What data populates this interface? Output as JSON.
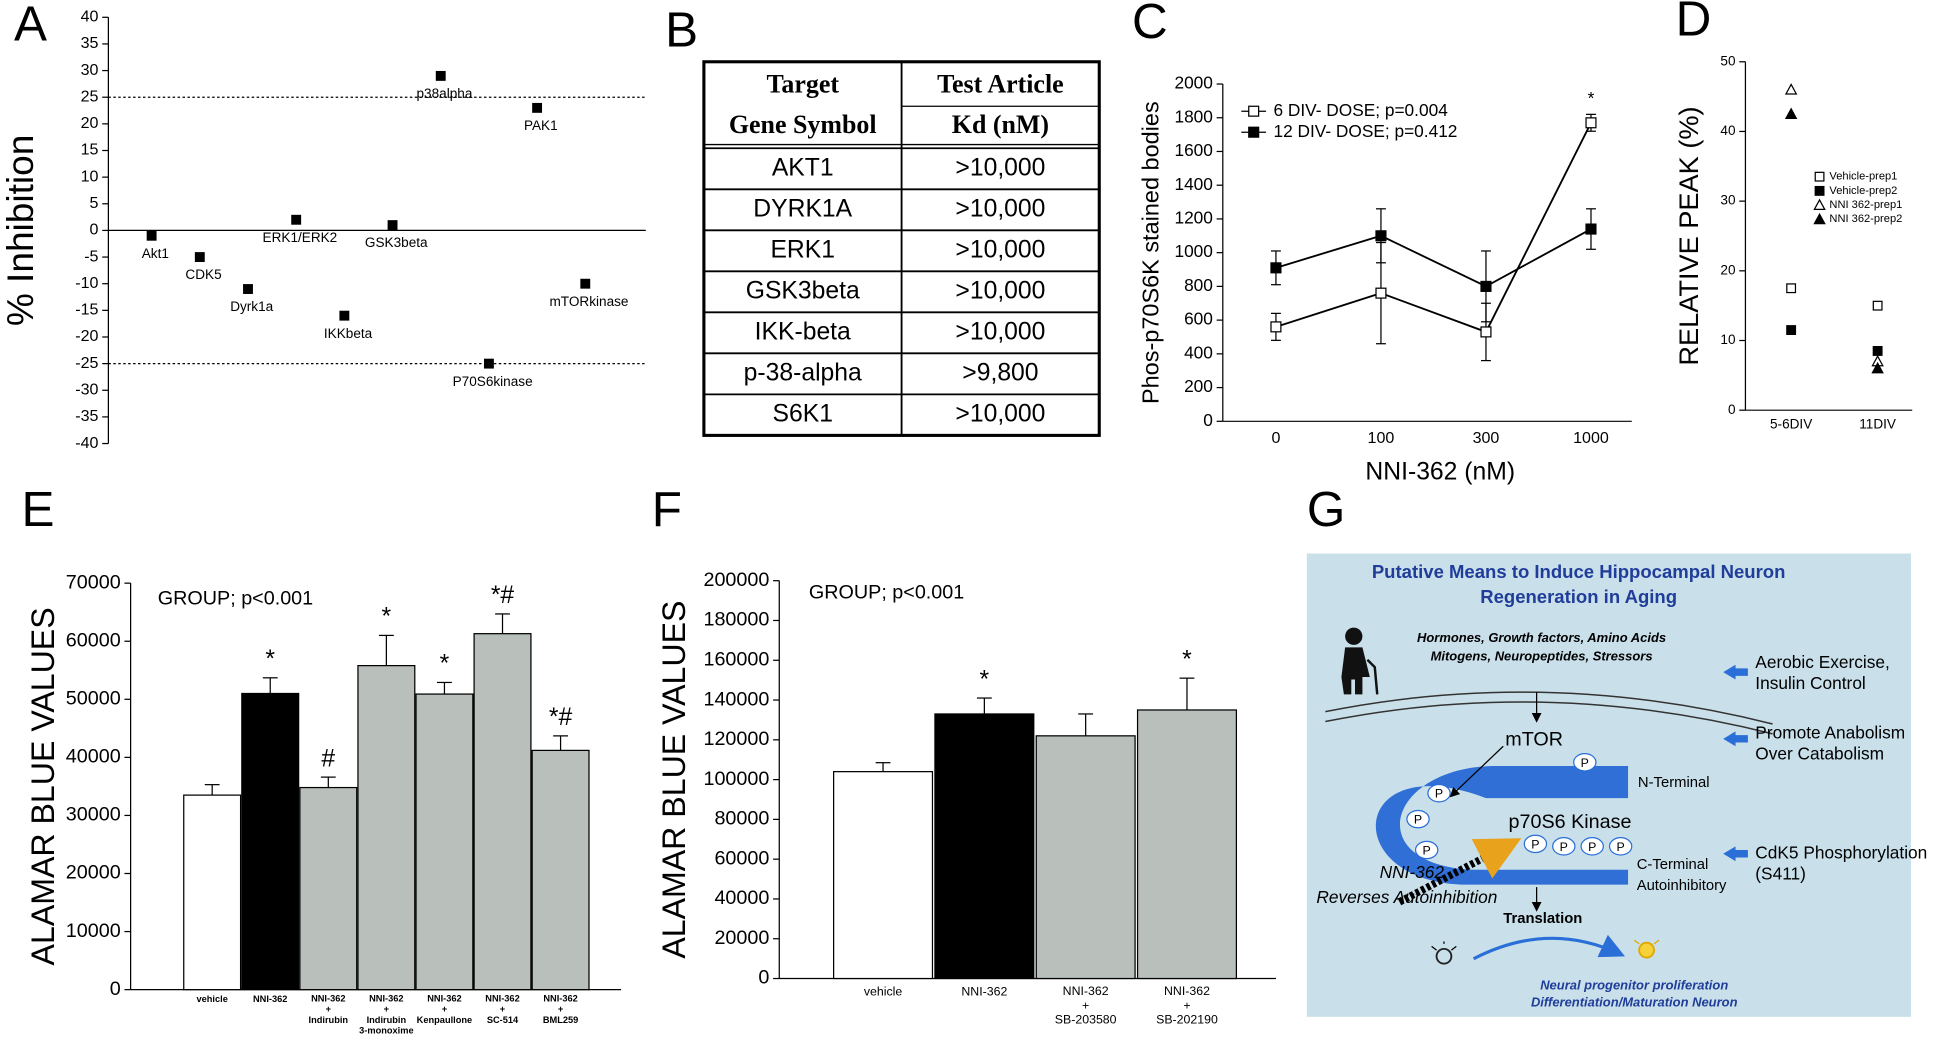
{
  "chart_data": [
    {
      "panel": "A",
      "type": "scatter",
      "ylabel": "% Inhibition",
      "categories": [
        "Akt1",
        "CDK5",
        "Dyrk1a",
        "ERK1/ERK2",
        "IKKbeta",
        "GSK3beta",
        "p38alpha",
        "P70S6kinase",
        "PAK1",
        "mTORkinase"
      ],
      "values": [
        -1,
        -5,
        -11,
        2,
        -16,
        1,
        29,
        -25,
        23,
        -10
      ],
      "color": "#000000",
      "ylim": [
        -40,
        40
      ],
      "yticks": [
        -40,
        -35,
        -30,
        -25,
        -20,
        -15,
        -10,
        -5,
        0,
        5,
        10,
        15,
        20,
        25,
        30,
        35,
        40
      ],
      "reference_lines": [
        25,
        -25
      ]
    },
    {
      "panel": "C",
      "type": "line",
      "xlabel": "NNI-362 (nM)",
      "ylabel": "Phos-p70S6K stained bodies",
      "categories": [
        "0",
        "100",
        "300",
        "1000"
      ],
      "series": [
        {
          "name": "6 DIV- DOSE; p=0.004",
          "color": "#000000",
          "marker": "open-square",
          "values": [
            560,
            760,
            530,
            1770
          ],
          "errors": [
            80,
            300,
            170,
            50
          ]
        },
        {
          "name": "12 DIV- DOSE; p=0.412",
          "color": "#000000",
          "marker": "filled-square",
          "values": [
            910,
            1100,
            800,
            1140
          ],
          "errors": [
            100,
            160,
            210,
            120
          ]
        }
      ],
      "significance": [
        null,
        null,
        null,
        "*"
      ],
      "ylim": [
        0,
        2000
      ],
      "yticks": [
        0,
        200,
        400,
        600,
        800,
        1000,
        1200,
        1400,
        1600,
        1800,
        2000
      ]
    },
    {
      "panel": "D",
      "type": "scatter",
      "ylabel": "RELATIVE PEAK (%)",
      "categories": [
        "5-6DIV",
        "11DIV"
      ],
      "series": [
        {
          "name": "Vehicle-prep1",
          "color": "#000000",
          "marker": "open-square",
          "values": [
            17.5,
            15
          ]
        },
        {
          "name": "Vehicle-prep2",
          "color": "#000000",
          "marker": "filled-square",
          "values": [
            11.5,
            8.5
          ]
        },
        {
          "name": "NNI 362-prep1",
          "color": "#000000",
          "marker": "open-triangle",
          "values": [
            46,
            7
          ]
        },
        {
          "name": "NNI 362-prep2",
          "color": "#000000",
          "marker": "filled-triangle",
          "values": [
            42.5,
            6
          ]
        }
      ],
      "ylim": [
        0,
        50
      ],
      "yticks": [
        0,
        10,
        20,
        30,
        40,
        50
      ]
    },
    {
      "panel": "E",
      "type": "bar",
      "ylabel": "ALAMAR BLUE VALUES",
      "annotation": "GROUP; p<0.001",
      "categories": [
        "vehicle",
        "NNI-362",
        "NNI-362\n+\nIndirubin",
        "NNI-362\n+\nIndirubin\n3-monoxime",
        "NNI-362\n+\nKenpaullone",
        "NNI-362\n+\nSC-514",
        "NNI-362\n+\nBML259"
      ],
      "values": [
        33500,
        51000,
        34800,
        55800,
        50900,
        61300,
        41200
      ],
      "errors": [
        1800,
        2700,
        1800,
        5200,
        2000,
        3400,
        2500
      ],
      "colors": [
        "#ffffff",
        "#000000",
        "#b9c0bc",
        "#b9c0bc",
        "#b9c0bc",
        "#b9c0bc",
        "#b9c0bc"
      ],
      "significance": [
        null,
        "*",
        "#",
        "*",
        "*",
        "*#",
        "*#"
      ],
      "ylim": [
        0,
        70000
      ],
      "yticks": [
        0,
        10000,
        20000,
        30000,
        40000,
        50000,
        60000,
        70000
      ]
    },
    {
      "panel": "F",
      "type": "bar",
      "ylabel": "ALAMAR BLUE VALUES",
      "annotation": "GROUP; p<0.001",
      "categories": [
        "vehicle",
        "NNI-362",
        "NNI-362\n+\nSB-203580",
        "NNI-362\n+\nSB-202190"
      ],
      "values": [
        104000,
        133000,
        122000,
        135000
      ],
      "errors": [
        4500,
        8000,
        11000,
        16000
      ],
      "colors": [
        "#ffffff",
        "#000000",
        "#b9c0bc",
        "#b9c0bc"
      ],
      "significance": [
        null,
        "*",
        null,
        "*"
      ],
      "ylim": [
        0,
        200000
      ],
      "yticks": [
        0,
        20000,
        40000,
        60000,
        80000,
        100000,
        120000,
        140000,
        160000,
        180000,
        200000
      ]
    }
  ],
  "table": {
    "panel": "B",
    "header": [
      [
        "Target",
        "Test Article"
      ],
      [
        "Gene Symbol",
        "Kd (nM)"
      ]
    ],
    "rows": [
      [
        "AKT1",
        ">10,000"
      ],
      [
        "DYRK1A",
        ">10,000"
      ],
      [
        "ERK1",
        ">10,000"
      ],
      [
        "GSK3beta",
        ">10,000"
      ],
      [
        "IKK-beta",
        ">10,000"
      ],
      [
        "p-38-alpha",
        ">9,800"
      ],
      [
        "S6K1",
        ">10,000"
      ]
    ]
  },
  "diagram": {
    "panel": "G",
    "title_lines": [
      "Putative Means to Induce Hippocampal Neuron",
      "Regeneration in Aging"
    ],
    "inputs": [
      "Hormones,  Growth factors, Amino Acids",
      "Mitogens, Neuropeptides, Stressors"
    ],
    "mtor": "mTOR",
    "kinase": "p70S6 Kinase",
    "n_terminal": "N-Terminal",
    "c_terminal": [
      "C-Terminal",
      "Autoinhibitory"
    ],
    "phospho": "P",
    "drug": [
      "NNI-362",
      "Reverses Autoinhibition"
    ],
    "translation": "Translation",
    "outcome": [
      "Neural progenitor proliferation",
      "Differentiation/Maturation Neuron"
    ],
    "interventions": [
      [
        "Aerobic Exercise,",
        "Insulin Control"
      ],
      [
        "Promote Anabolism",
        "Over Catabolism"
      ],
      [
        "CdK5 Phosphorylation",
        "(S411)"
      ]
    ]
  }
}
